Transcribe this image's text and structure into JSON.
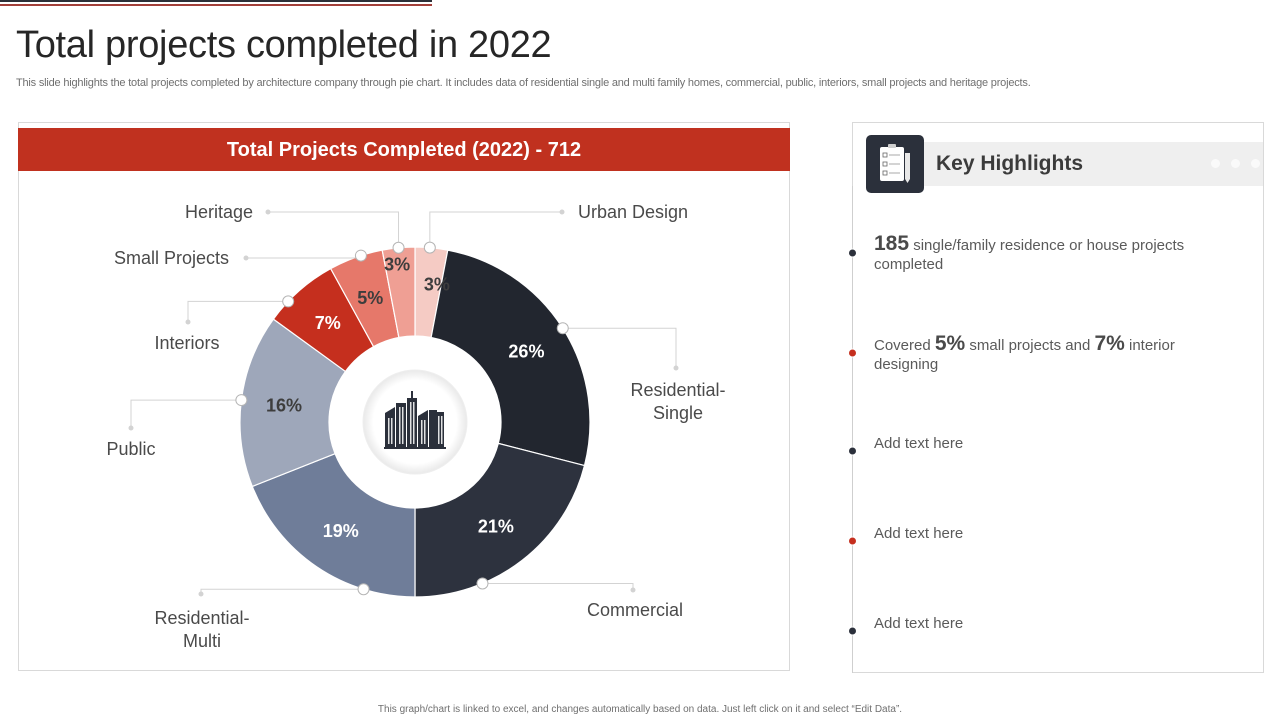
{
  "page": {
    "title": "Total projects completed in 2022",
    "subtitle": "This slide highlights the total projects completed by architecture company through pie chart. It includes data of residential single and multi family homes, commercial, public, interiors, small projects and heritage projects.",
    "footer": "This graph/chart is linked to excel, and changes automatically based on data. Just left click on it and select “Edit Data”."
  },
  "chart_data": {
    "type": "pie",
    "variant": "donut",
    "title": "Total Projects Completed (2022) - 712",
    "total": 712,
    "unit": "%",
    "categories": [
      "Urban Design",
      "Residential-Single",
      "Commercial",
      "Residential-Multi",
      "Public",
      "Interiors",
      "Small Projects",
      "Heritage"
    ],
    "values": [
      3,
      26,
      21,
      19,
      16,
      7,
      5,
      3
    ],
    "labels": [
      "3%",
      "26%",
      "21%",
      "19%",
      "16%",
      "7%",
      "5%",
      "3%"
    ],
    "colors": [
      "#f5cbc4",
      "#22262f",
      "#2d323e",
      "#6f7d99",
      "#9ea7ba",
      "#c52f1e",
      "#e6786a",
      "#ef9f94"
    ],
    "label_colors": [
      "#3d3d3d",
      "#ffffff",
      "#ffffff",
      "#ffffff",
      "#3d3d3d",
      "#ffffff",
      "#3d3d3d",
      "#3d3d3d"
    ],
    "start": "12 o'clock",
    "direction": "clockwise",
    "center_icon": "city-buildings-icon",
    "legend": "callout labels around chart"
  },
  "highlights": {
    "title": "Key Highlights",
    "header_icon": "clipboard-checklist-icon",
    "items": [
      {
        "parts": [
          {
            "b": "185"
          },
          {
            "t": " single/family residence or house projects completed"
          }
        ],
        "color": "#2b303b"
      },
      {
        "parts": [
          {
            "t": "Covered "
          },
          {
            "b": "5%"
          },
          {
            "t": "  small projects and "
          },
          {
            "b": "7%"
          },
          {
            "t": " interior designing"
          }
        ],
        "color": "#c52f1e"
      },
      {
        "parts": [
          {
            "t": "Add text here"
          }
        ],
        "color": "#2b303b"
      },
      {
        "parts": [
          {
            "t": "Add text here"
          }
        ],
        "color": "#c52f1e"
      },
      {
        "parts": [
          {
            "t": "Add text here"
          }
        ],
        "color": "#2b303b"
      }
    ]
  },
  "colors": {
    "accent_red": "#c0311f",
    "dark_navy": "#2b303b"
  }
}
